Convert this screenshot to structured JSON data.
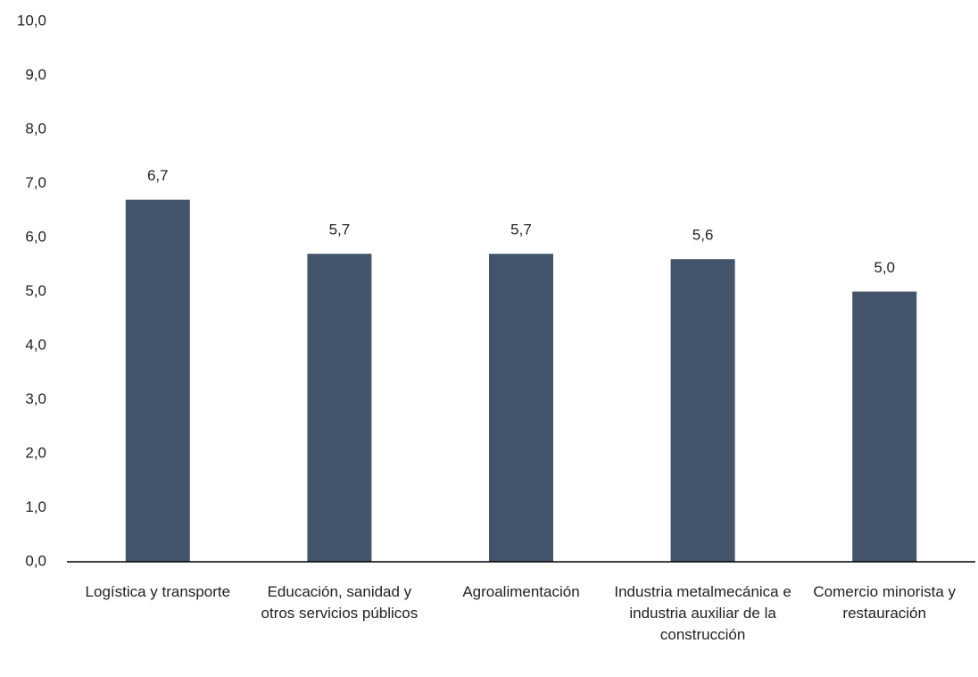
{
  "chart_data": {
    "type": "bar",
    "categories": [
      "Logística y transporte",
      "Educación, sanidad y otros servicios públicos",
      "Agroalimentación",
      "Industria metalmecánica e industria auxiliar de la construcción",
      "Comercio minorista y restauración"
    ],
    "values": [
      6.7,
      5.7,
      5.7,
      5.6,
      5.0
    ],
    "value_labels": [
      "6,7",
      "5,7",
      "5,7",
      "5,6",
      "5,0"
    ],
    "color": "#44546a",
    "ylim": [
      0,
      10
    ],
    "yticks": [
      {
        "value": 0,
        "label": "0,0"
      },
      {
        "value": 1,
        "label": "1,0"
      },
      {
        "value": 2,
        "label": "2,0"
      },
      {
        "value": 3,
        "label": "3,0"
      },
      {
        "value": 4,
        "label": "4,0"
      },
      {
        "value": 5,
        "label": "5,0"
      },
      {
        "value": 6,
        "label": "6,0"
      },
      {
        "value": 7,
        "label": "7,0"
      },
      {
        "value": 8,
        "label": "8,0"
      },
      {
        "value": 9,
        "label": "9,0"
      },
      {
        "value": 10,
        "label": "10,0"
      }
    ],
    "grid": false
  }
}
